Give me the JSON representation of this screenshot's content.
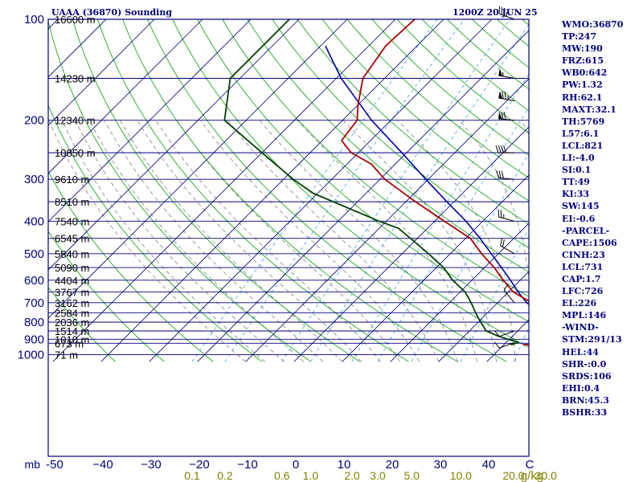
{
  "header": {
    "station": "UAAA (36870) Sounding",
    "time": "1200Z 20 JUN 25"
  },
  "indices": [
    "WMO:36870",
    "TP:247",
    "MW:190",
    "FRZ:615",
    "WB0:642",
    "PW:1.32",
    "RH:62.1",
    "MAXT:32.1",
    "TH:5769",
    "L57:6.1",
    "LCL:821",
    "LI:-4.0",
    "SI:0.1",
    "TT:49",
    "KI:33",
    "SW:145",
    "EI:-0.6",
    "-PARCEL-",
    "CAPE:1506",
    "CINH:23",
    "LCL:731",
    "CAP:1.7",
    "LFC:726",
    "EL:226",
    "MPL:146",
    "-WIND-",
    "STM:291/13",
    "HEL:44",
    "SHR-:0.0",
    "SRDS:106",
    "EHI:0.4",
    "BRN:45.3",
    "BSHR:33"
  ],
  "colors": {
    "frame": "#000080",
    "isobar": "#000080",
    "isotherm": "#000080",
    "dry_adiabat": "#00a000",
    "moist_adiabat": "#808080",
    "mixing_ratio": "#40a0e0",
    "temperature": "#aa0000",
    "dewpoint": "#004000",
    "parcel": "#0000aa",
    "wind": "#000000",
    "mixing_label": "#808000"
  },
  "chart_data": {
    "type": "line",
    "title": "UAAA (36870) Sounding",
    "pressure_axis_label": "mb",
    "pressure_ticks": [
      100,
      200,
      300,
      400,
      500,
      600,
      700,
      800,
      900,
      1000
    ],
    "temperature_ticks": [
      -50,
      -40,
      -30,
      -20,
      -10,
      0,
      10,
      20,
      30,
      40
    ],
    "temperature_tick_labels": [
      "-50",
      "−40",
      "−30",
      "−20",
      "−10",
      "0",
      "10",
      "20",
      "30",
      "40"
    ],
    "corner_label": "C",
    "xlim": [
      -50,
      50
    ],
    "ylim": [
      1050,
      100
    ],
    "height_levels": [
      {
        "p": 100,
        "label": "16600 m"
      },
      {
        "p": 150,
        "label": "14230 m"
      },
      {
        "p": 200,
        "label": "12340 m"
      },
      {
        "p": 250,
        "label": "10850 m"
      },
      {
        "p": 300,
        "label": "9610 m"
      },
      {
        "p": 350,
        "label": "8510 m"
      },
      {
        "p": 400,
        "label": "7540 m"
      },
      {
        "p": 450,
        "label": "6545 m"
      },
      {
        "p": 500,
        "label": "5840 m"
      },
      {
        "p": 550,
        "label": "5090 m"
      },
      {
        "p": 600,
        "label": "4404 m"
      },
      {
        "p": 650,
        "label": "3767 m"
      },
      {
        "p": 700,
        "label": "3162 m"
      },
      {
        "p": 750,
        "label": "2584 m"
      },
      {
        "p": 800,
        "label": "2036 m"
      },
      {
        "p": 850,
        "label": "1514 m"
      },
      {
        "p": 900,
        "label": "1010 m"
      },
      {
        "p": 925,
        "label": "673 m"
      },
      {
        "p": 1000,
        "label": "71 m"
      }
    ],
    "mixing_ratio_labels": [
      {
        "w": 0.1,
        "label": "0.1"
      },
      {
        "w": 0.2,
        "label": "0.2"
      },
      {
        "w": 0.6,
        "label": "0.6"
      },
      {
        "w": 1.0,
        "label": "1.0"
      },
      {
        "w": 2.0,
        "label": "2.0"
      },
      {
        "w": 3.0,
        "label": "3.0"
      },
      {
        "w": 5.0,
        "label": "5.0"
      },
      {
        "w": 10.0,
        "label": "10.0"
      },
      {
        "w": 20.0,
        "label": "20.0"
      },
      {
        "w": 30.0,
        "label": "30.0"
      }
    ],
    "mixing_ratio_unit": "g/kg",
    "temperature": [
      {
        "p": 100,
        "t": -66.0
      },
      {
        "p": 120,
        "t": -66.5
      },
      {
        "p": 150,
        "t": -64.5
      },
      {
        "p": 180,
        "t": -60.0
      },
      {
        "p": 200,
        "t": -57.0
      },
      {
        "p": 230,
        "t": -56.0
      },
      {
        "p": 250,
        "t": -51.5
      },
      {
        "p": 270,
        "t": -45.0
      },
      {
        "p": 300,
        "t": -39.0
      },
      {
        "p": 350,
        "t": -28.0
      },
      {
        "p": 400,
        "t": -18.0
      },
      {
        "p": 450,
        "t": -9.0
      },
      {
        "p": 500,
        "t": -3.5
      },
      {
        "p": 550,
        "t": 2.0
      },
      {
        "p": 600,
        "t": 6.5
      },
      {
        "p": 650,
        "t": 11.0
      },
      {
        "p": 700,
        "t": 17.0
      },
      {
        "p": 750,
        "t": 20.5
      },
      {
        "p": 800,
        "t": 23.5
      },
      {
        "p": 850,
        "t": 26.5
      },
      {
        "p": 900,
        "t": 29.5
      },
      {
        "p": 920,
        "t": 34.0
      },
      {
        "p": 935,
        "t": 24.0
      }
    ],
    "dewpoint": [
      {
        "p": 100,
        "t": -92.0
      },
      {
        "p": 120,
        "t": -92.0
      },
      {
        "p": 150,
        "t": -92.0
      },
      {
        "p": 200,
        "t": -84.5
      },
      {
        "p": 250,
        "t": -70.0
      },
      {
        "p": 300,
        "t": -58.0
      },
      {
        "p": 330,
        "t": -51.0
      },
      {
        "p": 400,
        "t": -31.5
      },
      {
        "p": 420,
        "t": -26.0
      },
      {
        "p": 500,
        "t": -14.5
      },
      {
        "p": 550,
        "t": -8.5
      },
      {
        "p": 600,
        "t": -4.0
      },
      {
        "p": 650,
        "t": 1.0
      },
      {
        "p": 700,
        "t": 4.5
      },
      {
        "p": 750,
        "t": 7.5
      },
      {
        "p": 800,
        "t": 10.5
      },
      {
        "p": 850,
        "t": 13.5
      },
      {
        "p": 880,
        "t": 17.0
      },
      {
        "p": 920,
        "t": 22.5
      },
      {
        "p": 935,
        "t": 21.5
      }
    ],
    "parcel": [
      {
        "p": 120,
        "t": -79.0
      },
      {
        "p": 150,
        "t": -69.0
      },
      {
        "p": 200,
        "t": -54.0
      },
      {
        "p": 250,
        "t": -41.0
      },
      {
        "p": 300,
        "t": -30.5
      },
      {
        "p": 350,
        "t": -21.5
      },
      {
        "p": 400,
        "t": -13.5
      },
      {
        "p": 450,
        "t": -7.0
      },
      {
        "p": 500,
        "t": -1.5
      },
      {
        "p": 550,
        "t": 3.5
      },
      {
        "p": 600,
        "t": 8.0
      },
      {
        "p": 650,
        "t": 12.0
      },
      {
        "p": 700,
        "t": 16.0
      },
      {
        "p": 730,
        "t": 19.0
      },
      {
        "p": 800,
        "t": 24.5
      },
      {
        "p": 850,
        "t": 28.5
      },
      {
        "p": 900,
        "t": 32.5
      },
      {
        "p": 920,
        "t": 34.0
      }
    ],
    "wind_barbs": [
      {
        "p": 100,
        "dir": 290,
        "spd": 35
      },
      {
        "p": 150,
        "dir": 280,
        "spd": 55
      },
      {
        "p": 175,
        "dir": 280,
        "spd": 75
      },
      {
        "p": 200,
        "dir": 275,
        "spd": 70
      },
      {
        "p": 250,
        "dir": 270,
        "spd": 40
      },
      {
        "p": 300,
        "dir": 275,
        "spd": 30
      },
      {
        "p": 400,
        "dir": 285,
        "spd": 25
      },
      {
        "p": 500,
        "dir": 300,
        "spd": 20
      },
      {
        "p": 700,
        "dir": 320,
        "spd": 10
      },
      {
        "p": 850,
        "dir": 250,
        "spd": 10
      },
      {
        "p": 920,
        "dir": 250,
        "spd": 10
      }
    ]
  }
}
